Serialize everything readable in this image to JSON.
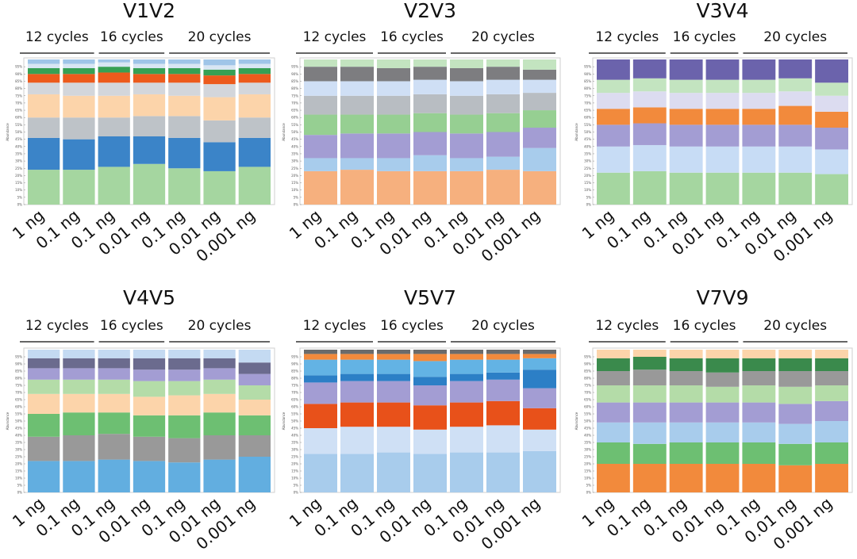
{
  "figure": {
    "cycle_groups": [
      {
        "label": "12 cycles",
        "span": [
          0,
          1
        ]
      },
      {
        "label": "16 cycles",
        "span": [
          2,
          3
        ]
      },
      {
        "label": "20 cycles",
        "span": [
          4,
          6
        ]
      }
    ],
    "sample_labels": [
      "1 ng",
      "0.1 ng",
      "0.1 ng",
      "0.01 ng",
      "0.1 ng",
      "0.01 ng",
      "0.001 ng"
    ],
    "y_ticks": [
      "0%",
      "5%",
      "10%",
      "15%",
      "20%",
      "25%",
      "30%",
      "35%",
      "40%",
      "45%",
      "50%",
      "55%",
      "60%",
      "65%",
      "70%",
      "75%",
      "80%",
      "85%",
      "90%",
      "95%"
    ],
    "y_axis_label": "Abundance"
  },
  "chart_data": [
    {
      "type": "bar",
      "stacked": true,
      "title": "V1V2",
      "ylim": [
        0,
        100
      ],
      "categories": [
        "1 ng",
        "0.1 ng",
        "0.1 ng",
        "0.01 ng",
        "0.1 ng",
        "0.01 ng",
        "0.001 ng"
      ],
      "series": [
        {
          "color": "#a5d6a0",
          "values": [
            24,
            24,
            26,
            28,
            25,
            23,
            26
          ]
        },
        {
          "color": "#3b84c8",
          "values": [
            22,
            21,
            21,
            19,
            21,
            20,
            20
          ]
        },
        {
          "color": "#bec3c8",
          "values": [
            14,
            15,
            13,
            14,
            15,
            15,
            14
          ]
        },
        {
          "color": "#fcd4aa",
          "values": [
            16,
            15,
            15,
            15,
            14,
            16,
            16
          ]
        },
        {
          "color": "#d3d6db",
          "values": [
            8,
            9,
            9,
            8,
            9,
            9,
            8
          ]
        },
        {
          "color": "#ec5a1c",
          "values": [
            6,
            6,
            7,
            6,
            6,
            6,
            6
          ]
        },
        {
          "color": "#36a054",
          "values": [
            4,
            4,
            4,
            4,
            4,
            4,
            4
          ]
        },
        {
          "color": "#d8e6f3",
          "values": [
            3,
            3,
            3,
            3,
            3,
            3,
            3
          ]
        },
        {
          "color": "#9fc5e8",
          "values": [
            3,
            3,
            2,
            3,
            3,
            4,
            3
          ]
        }
      ]
    },
    {
      "type": "bar",
      "stacked": true,
      "title": "V2V3",
      "ylim": [
        0,
        100
      ],
      "categories": [
        "1 ng",
        "0.1 ng",
        "0.1 ng",
        "0.01 ng",
        "0.1 ng",
        "0.01 ng",
        "0.001 ng"
      ],
      "series": [
        {
          "color": "#f6b07e",
          "values": [
            23,
            24,
            23,
            23,
            23,
            24,
            23
          ]
        },
        {
          "color": "#a8ccec",
          "values": [
            9,
            8,
            9,
            11,
            9,
            9,
            16
          ]
        },
        {
          "color": "#a39dd3",
          "values": [
            16,
            17,
            17,
            16,
            17,
            17,
            14
          ]
        },
        {
          "color": "#96cf92",
          "values": [
            14,
            13,
            13,
            13,
            13,
            13,
            12
          ]
        },
        {
          "color": "#b8bdc2",
          "values": [
            13,
            13,
            13,
            13,
            13,
            13,
            12
          ]
        },
        {
          "color": "#cfdff5",
          "values": [
            10,
            10,
            10,
            10,
            10,
            10,
            9
          ]
        },
        {
          "color": "#7d7d80",
          "values": [
            10,
            10,
            9,
            9,
            9,
            9,
            7
          ]
        },
        {
          "color": "#c3e4c0",
          "values": [
            5,
            5,
            6,
            5,
            6,
            5,
            7
          ]
        }
      ]
    },
    {
      "type": "bar",
      "stacked": true,
      "title": "V3V4",
      "ylim": [
        0,
        100
      ],
      "categories": [
        "1 ng",
        "0.1 ng",
        "0.1 ng",
        "0.01 ng",
        "0.1 ng",
        "0.01 ng",
        "0.001 ng"
      ],
      "series": [
        {
          "color": "#a5d6a0",
          "values": [
            22,
            23,
            22,
            22,
            22,
            22,
            21
          ]
        },
        {
          "color": "#c7dcf5",
          "values": [
            18,
            18,
            18,
            18,
            18,
            18,
            17
          ]
        },
        {
          "color": "#a39dd3",
          "values": [
            15,
            15,
            15,
            15,
            15,
            15,
            15
          ]
        },
        {
          "color": "#f28a3c",
          "values": [
            11,
            11,
            11,
            11,
            11,
            13,
            11
          ]
        },
        {
          "color": "#dcdcf0",
          "values": [
            11,
            11,
            11,
            11,
            11,
            10,
            11
          ]
        },
        {
          "color": "#c3e4c0",
          "values": [
            9,
            9,
            9,
            9,
            9,
            9,
            9
          ]
        },
        {
          "color": "#6b63ac",
          "values": [
            14,
            13,
            14,
            14,
            14,
            13,
            16
          ]
        }
      ]
    },
    {
      "type": "bar",
      "stacked": true,
      "title": "V4V5",
      "ylim": [
        0,
        100
      ],
      "categories": [
        "1 ng",
        "0.1 ng",
        "0.1 ng",
        "0.01 ng",
        "0.1 ng",
        "0.01 ng",
        "0.001 ng"
      ],
      "series": [
        {
          "color": "#62aee0",
          "values": [
            22,
            22,
            23,
            22,
            21,
            23,
            25
          ]
        },
        {
          "color": "#999999",
          "values": [
            17,
            18,
            18,
            17,
            17,
            17,
            15
          ]
        },
        {
          "color": "#6dbf72",
          "values": [
            16,
            16,
            15,
            15,
            16,
            16,
            14
          ]
        },
        {
          "color": "#fcd4aa",
          "values": [
            14,
            13,
            13,
            13,
            14,
            13,
            11
          ]
        },
        {
          "color": "#b4dca8",
          "values": [
            10,
            10,
            10,
            11,
            10,
            10,
            10
          ]
        },
        {
          "color": "#a39dd3",
          "values": [
            8,
            8,
            8,
            8,
            8,
            8,
            8
          ]
        },
        {
          "color": "#6b6b8e",
          "values": [
            7,
            7,
            7,
            8,
            8,
            7,
            8
          ]
        },
        {
          "color": "#c4daf2",
          "values": [
            6,
            6,
            6,
            6,
            6,
            6,
            9
          ]
        }
      ]
    },
    {
      "type": "bar",
      "stacked": true,
      "title": "V5V7",
      "ylim": [
        0,
        100
      ],
      "categories": [
        "1 ng",
        "0.1 ng",
        "0.1 ng",
        "0.01 ng",
        "0.1 ng",
        "0.01 ng",
        "0.001 ng"
      ],
      "series": [
        {
          "color": "#a8ccec",
          "values": [
            27,
            27,
            28,
            27,
            28,
            28,
            29
          ]
        },
        {
          "color": "#cfe0f5",
          "values": [
            18,
            19,
            18,
            17,
            18,
            19,
            15
          ]
        },
        {
          "color": "#e8511a",
          "values": [
            17,
            17,
            17,
            17,
            17,
            17,
            15
          ]
        },
        {
          "color": "#a39dd3",
          "values": [
            15,
            15,
            15,
            14,
            15,
            15,
            14
          ]
        },
        {
          "color": "#2c7fc6",
          "values": [
            5,
            5,
            5,
            6,
            5,
            5,
            13
          ]
        },
        {
          "color": "#63b3e4",
          "values": [
            11,
            10,
            10,
            11,
            10,
            9,
            8
          ]
        },
        {
          "color": "#f28a3c",
          "values": [
            4,
            4,
            4,
            5,
            4,
            4,
            3
          ]
        },
        {
          "color": "#6b6b6b",
          "values": [
            3,
            3,
            3,
            3,
            3,
            3,
            3
          ]
        }
      ]
    },
    {
      "type": "bar",
      "stacked": true,
      "title": "V7V9",
      "ylim": [
        0,
        100
      ],
      "categories": [
        "1 ng",
        "0.1 ng",
        "0.1 ng",
        "0.01 ng",
        "0.1 ng",
        "0.01 ng",
        "0.001 ng"
      ],
      "series": [
        {
          "color": "#f28a3c",
          "values": [
            20,
            20,
            20,
            20,
            20,
            19,
            20
          ]
        },
        {
          "color": "#6dbf72",
          "values": [
            15,
            14,
            15,
            15,
            15,
            15,
            15
          ]
        },
        {
          "color": "#a8ccec",
          "values": [
            14,
            15,
            14,
            14,
            14,
            14,
            15
          ]
        },
        {
          "color": "#a39dd3",
          "values": [
            14,
            14,
            14,
            14,
            14,
            14,
            14
          ]
        },
        {
          "color": "#b4dca8",
          "values": [
            12,
            12,
            12,
            11,
            12,
            12,
            11
          ]
        },
        {
          "color": "#999999",
          "values": [
            10,
            11,
            10,
            10,
            10,
            11,
            10
          ]
        },
        {
          "color": "#3a8a4c",
          "values": [
            9,
            9,
            9,
            10,
            9,
            9,
            9
          ]
        },
        {
          "color": "#fcd4aa",
          "values": [
            6,
            5,
            6,
            6,
            6,
            6,
            6
          ]
        }
      ]
    }
  ]
}
